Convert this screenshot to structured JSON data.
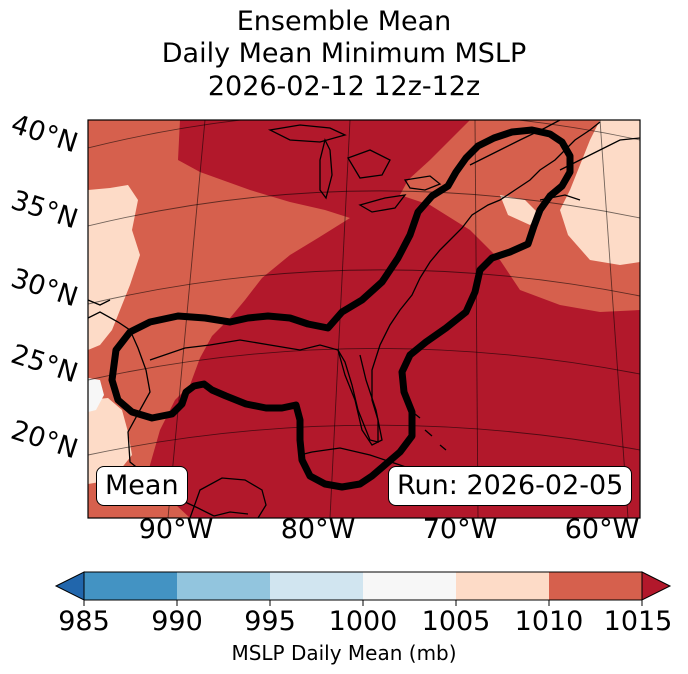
{
  "title": {
    "line1": "Ensemble Mean",
    "line2": "Daily Mean Minimum MSLP",
    "line3": "2026-02-12 12z-12z"
  },
  "map": {
    "lat_labels": [
      "40°N",
      "35°N",
      "30°N",
      "25°N",
      "20°N"
    ],
    "lon_labels": [
      "90°W",
      "80°W",
      "70°W",
      "60°W"
    ],
    "badge_left": "Mean",
    "badge_right": "Run: 2026-02-05",
    "contour_color": "#000000"
  },
  "colorbar": {
    "title": "MSLP Daily Mean (mb)",
    "ticks": [
      "985",
      "990",
      "995",
      "1000",
      "1005",
      "1010",
      "1015"
    ],
    "colors": {
      "under": "#2166ac",
      "985-990": "#4393c3",
      "990-995": "#92c5de",
      "995-1000": "#d1e5f0",
      "1000-1005": "#f7f7f7",
      "1005-1010": "#fddbc7",
      "1010-1015": "#d6604d",
      "over": "#b2182b"
    }
  }
}
